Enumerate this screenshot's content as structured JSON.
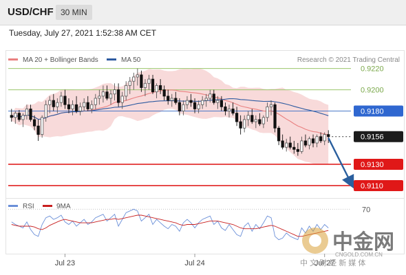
{
  "header": {
    "pair": "USD/CHF",
    "timeframe": "30 MIN"
  },
  "datetime": "Tuesday, July 27, 2021 1:52:38 AM CET",
  "credit": "Research © 2021 Trading Central",
  "colors": {
    "candle_up": "#555555",
    "candle_down": "#111111",
    "bollinger_fill": "#f7d4d4",
    "ma20": "#e98080",
    "ma50": "#2d5aa0",
    "level_green": "#9ac46a",
    "level_blue": "#4a78c8",
    "level_red": "#e02020",
    "arrow": "#2a5f9e",
    "rsi_line": "#6a8fd8",
    "rsi_ma": "#c81e1e"
  },
  "watermark": {
    "text": "中金网",
    "domain": "CNGOLD.COM.CN",
    "slogan": "中 文 财 经 新 媒 体"
  },
  "chart_data": {
    "type": "candlestick",
    "legend": [
      {
        "name": "MA 20 + Bollinger Bands",
        "color": "#e98080"
      },
      {
        "name": "MA 50",
        "color": "#2d5aa0"
      }
    ],
    "ylim": [
      0.9099,
      0.9232
    ],
    "x_ticks": [
      {
        "label": "Jul 23",
        "index": 14
      },
      {
        "label": "Jul 24",
        "index": 48
      },
      {
        "label": "Jul 27",
        "index": 82
      }
    ],
    "levels": [
      {
        "label": "0.9220",
        "value": 0.922,
        "style": "green"
      },
      {
        "label": "0.9200",
        "value": 0.92,
        "style": "green"
      },
      {
        "label": "0.9180",
        "value": 0.918,
        "style": "blue"
      },
      {
        "label": "0.9156",
        "value": 0.9156,
        "style": "current"
      },
      {
        "label": "0.9130",
        "value": 0.913,
        "style": "red"
      },
      {
        "label": "0.9110",
        "value": 0.911,
        "style": "red"
      }
    ],
    "ohlc": [
      [
        0.9176,
        0.9182,
        0.917,
        0.9174
      ],
      [
        0.9174,
        0.918,
        0.9168,
        0.9178
      ],
      [
        0.9178,
        0.9181,
        0.917,
        0.9172
      ],
      [
        0.9172,
        0.9178,
        0.9165,
        0.9176
      ],
      [
        0.9176,
        0.9186,
        0.9172,
        0.9182
      ],
      [
        0.9182,
        0.9186,
        0.917,
        0.9172
      ],
      [
        0.9172,
        0.9176,
        0.9162,
        0.9166
      ],
      [
        0.9166,
        0.9172,
        0.9152,
        0.9158
      ],
      [
        0.9158,
        0.9176,
        0.9155,
        0.9174
      ],
      [
        0.9174,
        0.919,
        0.917,
        0.9186
      ],
      [
        0.9186,
        0.9194,
        0.9178,
        0.919
      ],
      [
        0.919,
        0.9196,
        0.918,
        0.9184
      ],
      [
        0.9184,
        0.9192,
        0.9178,
        0.9188
      ],
      [
        0.9188,
        0.9198,
        0.9184,
        0.9194
      ],
      [
        0.9194,
        0.92,
        0.9182,
        0.9186
      ],
      [
        0.9186,
        0.9192,
        0.9178,
        0.9182
      ],
      [
        0.9182,
        0.919,
        0.9176,
        0.9186
      ],
      [
        0.9186,
        0.9194,
        0.9178,
        0.918
      ],
      [
        0.918,
        0.9188,
        0.9176,
        0.9184
      ],
      [
        0.9184,
        0.9192,
        0.918,
        0.9188
      ],
      [
        0.9188,
        0.9194,
        0.918,
        0.9182
      ],
      [
        0.9182,
        0.919,
        0.9178,
        0.9186
      ],
      [
        0.9186,
        0.9196,
        0.9182,
        0.9192
      ],
      [
        0.9192,
        0.92,
        0.9186,
        0.9194
      ],
      [
        0.9194,
        0.9204,
        0.9188,
        0.9198
      ],
      [
        0.9198,
        0.9204,
        0.919,
        0.9192
      ],
      [
        0.9192,
        0.92,
        0.9186,
        0.9196
      ],
      [
        0.9196,
        0.9206,
        0.919,
        0.92
      ],
      [
        0.92,
        0.9206,
        0.9184,
        0.9188
      ],
      [
        0.9188,
        0.9198,
        0.9182,
        0.9194
      ],
      [
        0.9194,
        0.9208,
        0.919,
        0.9204
      ],
      [
        0.9204,
        0.9212,
        0.9196,
        0.9208
      ],
      [
        0.9208,
        0.9216,
        0.92,
        0.9212
      ],
      [
        0.9212,
        0.922,
        0.9204,
        0.9214
      ],
      [
        0.9214,
        0.9218,
        0.9198,
        0.9202
      ],
      [
        0.9202,
        0.921,
        0.9194,
        0.9206
      ],
      [
        0.9206,
        0.9214,
        0.92,
        0.921
      ],
      [
        0.921,
        0.9214,
        0.9196,
        0.9198
      ],
      [
        0.9198,
        0.9206,
        0.9192,
        0.9204
      ],
      [
        0.9204,
        0.921,
        0.9196,
        0.92
      ],
      [
        0.92,
        0.9204,
        0.919,
        0.9194
      ],
      [
        0.9194,
        0.92,
        0.9186,
        0.919
      ],
      [
        0.919,
        0.9196,
        0.9184,
        0.9192
      ],
      [
        0.9192,
        0.9198,
        0.9186,
        0.9188
      ],
      [
        0.9188,
        0.9192,
        0.9176,
        0.918
      ],
      [
        0.918,
        0.919,
        0.9176,
        0.9186
      ],
      [
        0.9186,
        0.9194,
        0.9182,
        0.919
      ],
      [
        0.919,
        0.9196,
        0.9184,
        0.9188
      ],
      [
        0.9188,
        0.9192,
        0.9178,
        0.9182
      ],
      [
        0.9182,
        0.919,
        0.9178,
        0.9186
      ],
      [
        0.9186,
        0.9194,
        0.9182,
        0.919
      ],
      [
        0.919,
        0.9196,
        0.9184,
        0.9192
      ],
      [
        0.9192,
        0.92,
        0.9188,
        0.9196
      ],
      [
        0.9196,
        0.92,
        0.9186,
        0.9188
      ],
      [
        0.9188,
        0.9194,
        0.9182,
        0.919
      ],
      [
        0.919,
        0.9194,
        0.918,
        0.9184
      ],
      [
        0.9184,
        0.9188,
        0.9176,
        0.918
      ],
      [
        0.918,
        0.9186,
        0.9174,
        0.9182
      ],
      [
        0.9182,
        0.9188,
        0.9176,
        0.9178
      ],
      [
        0.9178,
        0.9184,
        0.9166,
        0.917
      ],
      [
        0.917,
        0.9176,
        0.9158,
        0.9164
      ],
      [
        0.9164,
        0.9176,
        0.916,
        0.9172
      ],
      [
        0.9172,
        0.918,
        0.9166,
        0.9176
      ],
      [
        0.9176,
        0.9182,
        0.9168,
        0.917
      ],
      [
        0.917,
        0.9176,
        0.9164,
        0.9172
      ],
      [
        0.9172,
        0.9178,
        0.9166,
        0.9168
      ],
      [
        0.9168,
        0.9176,
        0.9164,
        0.9174
      ],
      [
        0.9174,
        0.9188,
        0.917,
        0.9184
      ],
      [
        0.9184,
        0.919,
        0.9176,
        0.9186
      ],
      [
        0.9186,
        0.9188,
        0.916,
        0.9164
      ],
      [
        0.9164,
        0.9166,
        0.9148,
        0.9152
      ],
      [
        0.9152,
        0.9158,
        0.9144,
        0.9146
      ],
      [
        0.9146,
        0.9154,
        0.9142,
        0.915
      ],
      [
        0.915,
        0.9156,
        0.9144,
        0.9146
      ],
      [
        0.9146,
        0.9152,
        0.914,
        0.9144
      ],
      [
        0.9144,
        0.915,
        0.9138,
        0.9142
      ],
      [
        0.9142,
        0.9156,
        0.914,
        0.9152
      ],
      [
        0.9152,
        0.9158,
        0.9146,
        0.9148
      ],
      [
        0.9148,
        0.9156,
        0.9144,
        0.9154
      ],
      [
        0.9154,
        0.9158,
        0.9146,
        0.915
      ],
      [
        0.915,
        0.9158,
        0.9146,
        0.9156
      ],
      [
        0.9156,
        0.916,
        0.915,
        0.9152
      ],
      [
        0.9152,
        0.916,
        0.9148,
        0.9158
      ],
      [
        0.9158,
        0.9162,
        0.915,
        0.9156
      ]
    ],
    "rsi": [
      55,
      52,
      50,
      48,
      55,
      46,
      40,
      38,
      52,
      60,
      62,
      58,
      60,
      63,
      55,
      52,
      56,
      50,
      54,
      58,
      52,
      55,
      60,
      62,
      64,
      56,
      60,
      64,
      50,
      58,
      66,
      68,
      70,
      68,
      56,
      60,
      64,
      52,
      58,
      54,
      50,
      47,
      52,
      50,
      44,
      54,
      58,
      54,
      48,
      54,
      58,
      60,
      62,
      52,
      56,
      48,
      45,
      52,
      46,
      40,
      38,
      50,
      54,
      44,
      52,
      47,
      54,
      62,
      60,
      38,
      34,
      36,
      42,
      38,
      36,
      34,
      48,
      42,
      50,
      44,
      52,
      46,
      52,
      48
    ],
    "rsi_ma": [
      52,
      51,
      50,
      50,
      50,
      50,
      49,
      47,
      46,
      48,
      51,
      53,
      55,
      57,
      58,
      57,
      56,
      55,
      54,
      54,
      54,
      54,
      55,
      56,
      57,
      58,
      58,
      59,
      58,
      59,
      60,
      61,
      62,
      63,
      63,
      62,
      61,
      60,
      59,
      58,
      57,
      56,
      55,
      54,
      52,
      51,
      52,
      52,
      52,
      53,
      54,
      55,
      56,
      56,
      56,
      55,
      54,
      53,
      52,
      50,
      48,
      47,
      47,
      47,
      47,
      48,
      49,
      50,
      51,
      50,
      48,
      46,
      44,
      42,
      40,
      38,
      38,
      39,
      40,
      41,
      42,
      43,
      44,
      45
    ],
    "rsi_levels": [
      {
        "label": "70",
        "value": 70
      }
    ],
    "rsi_legend": [
      {
        "name": "RSI",
        "color": "#6a8fd8"
      },
      {
        "name": "9MA",
        "color": "#c81e1e"
      }
    ]
  }
}
